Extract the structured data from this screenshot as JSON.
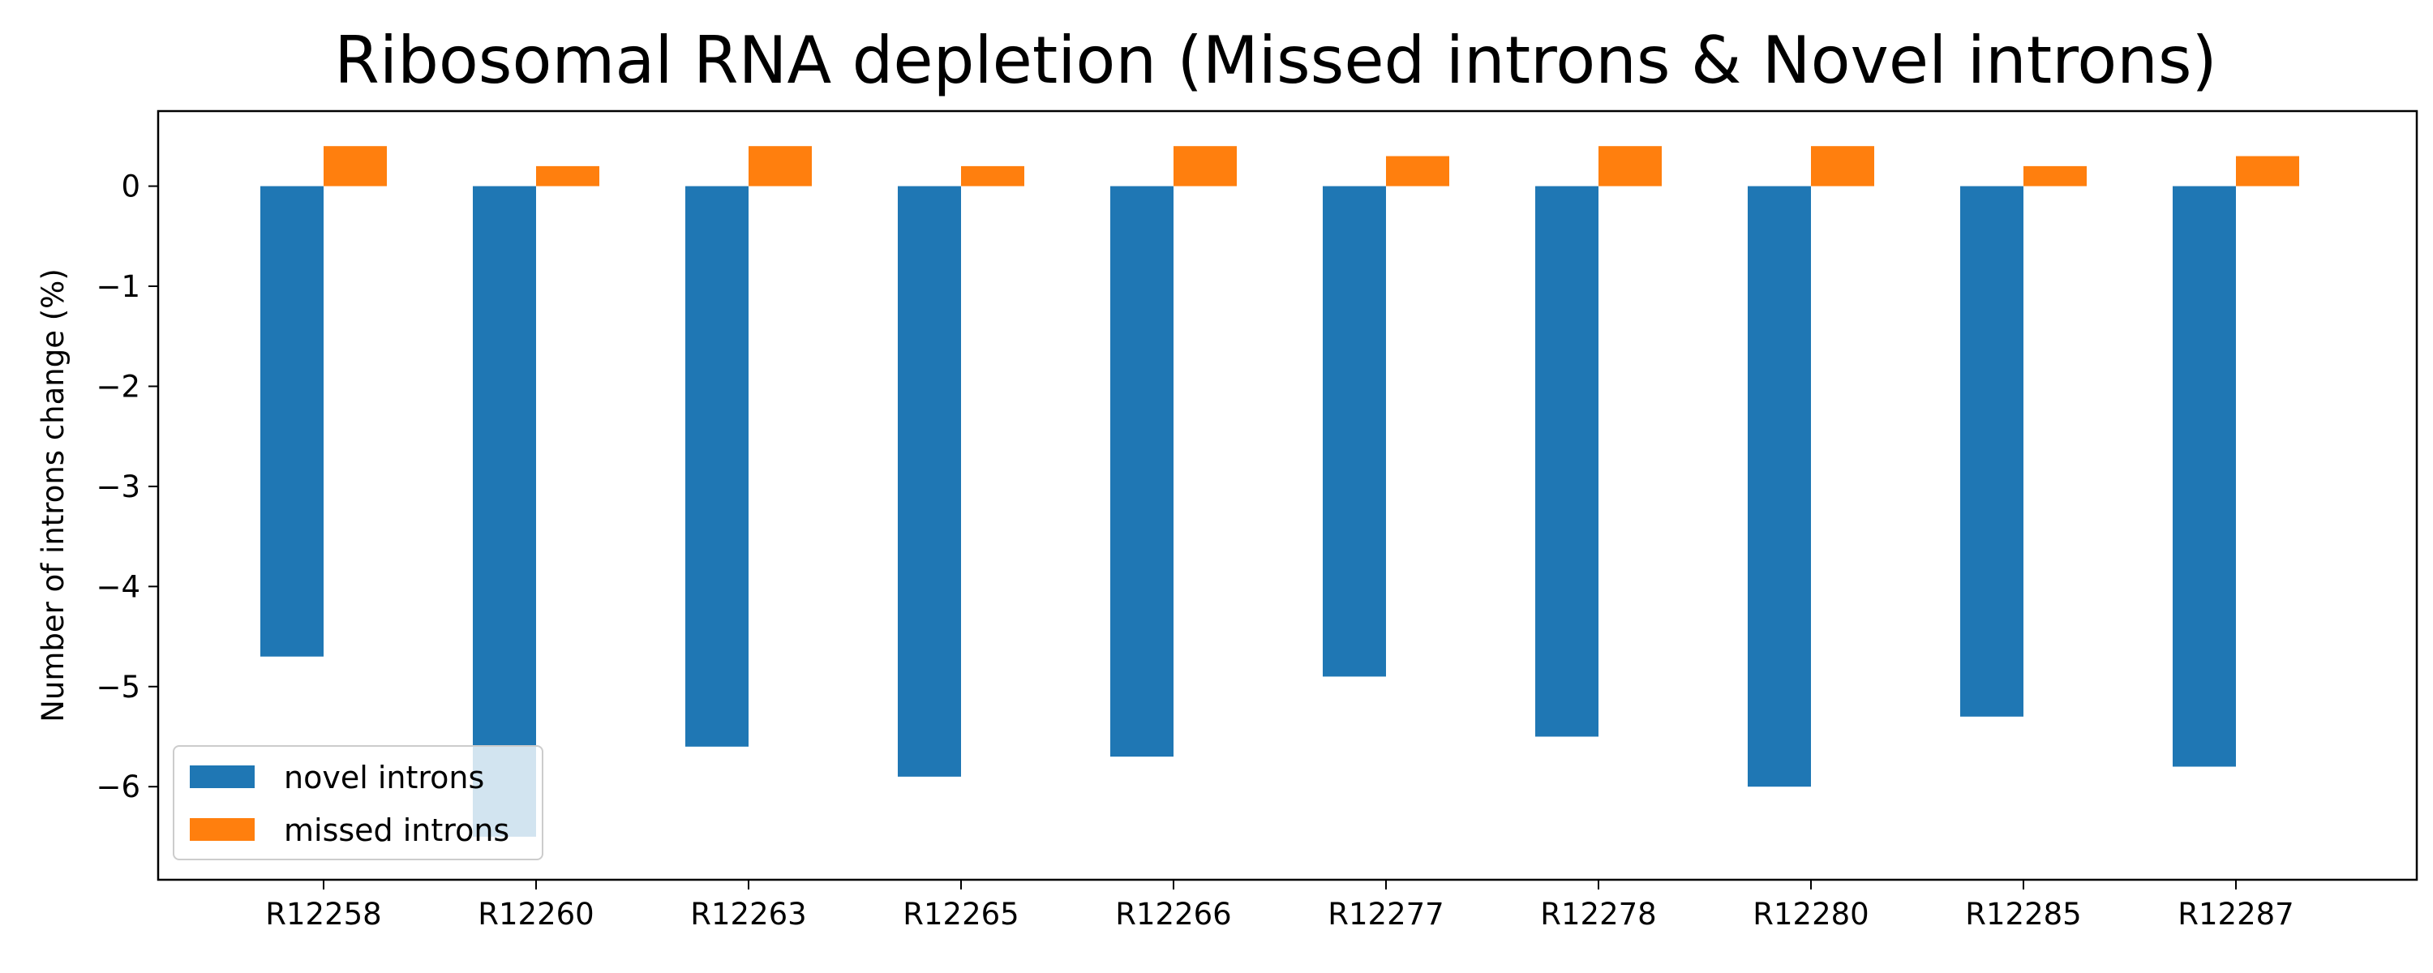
{
  "chart_data": {
    "type": "bar",
    "title": "Ribosomal RNA depletion (Missed introns & Novel introns)",
    "xlabel": "",
    "ylabel": "Number of introns change (%)",
    "categories": [
      "R12258",
      "R12260",
      "R12263",
      "R12265",
      "R12266",
      "R12277",
      "R12278",
      "R12280",
      "R12285",
      "R12287"
    ],
    "series": [
      {
        "name": "novel introns",
        "color": "#1f77b4",
        "values": [
          -4.7,
          -6.5,
          -5.6,
          -5.9,
          -5.7,
          -4.9,
          -5.5,
          -6.0,
          -5.3,
          -5.8
        ]
      },
      {
        "name": "missed introns",
        "color": "#ff7f0e",
        "values": [
          0.4,
          0.2,
          0.4,
          0.2,
          0.4,
          0.3,
          0.4,
          0.4,
          0.2,
          0.3
        ]
      }
    ],
    "yticks": [
      0,
      -1,
      -2,
      -3,
      -4,
      -5,
      -6
    ],
    "ytick_labels": [
      "0",
      "−1",
      "−2",
      "−3",
      "−4",
      "−5",
      "−6"
    ],
    "ylim": [
      -6.93,
      0.75
    ],
    "grid": false,
    "legend_position": "lower-left"
  }
}
